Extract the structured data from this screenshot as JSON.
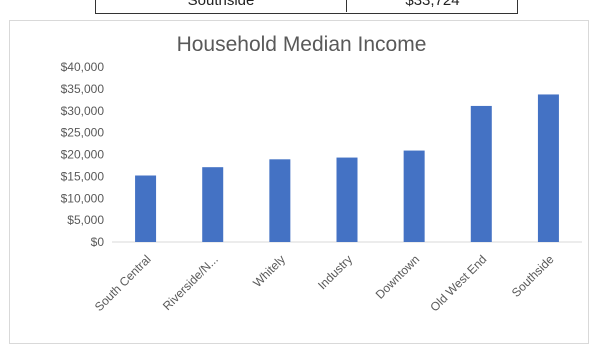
{
  "top_table": {
    "label": "Southside",
    "value": "$33,724"
  },
  "chart_data": {
    "type": "bar",
    "title": "Household Median Income",
    "xlabel": "",
    "ylabel": "",
    "categories": [
      "South Central",
      "Riverside/N...",
      "Whitely",
      "Industry",
      "Downtown",
      "Old West End",
      "Southside"
    ],
    "values": [
      15200,
      17100,
      18900,
      19300,
      20900,
      31100,
      33724
    ],
    "ylim": [
      0,
      40000
    ],
    "yticks": [
      "$0",
      "$5,000",
      "$10,000",
      "$15,000",
      "$20,000",
      "$25,000",
      "$30,000",
      "$35,000",
      "$40,000"
    ],
    "grid": false,
    "legend": "none",
    "bar_color": "#4472c4",
    "axis_color": "#d9d9d9"
  }
}
